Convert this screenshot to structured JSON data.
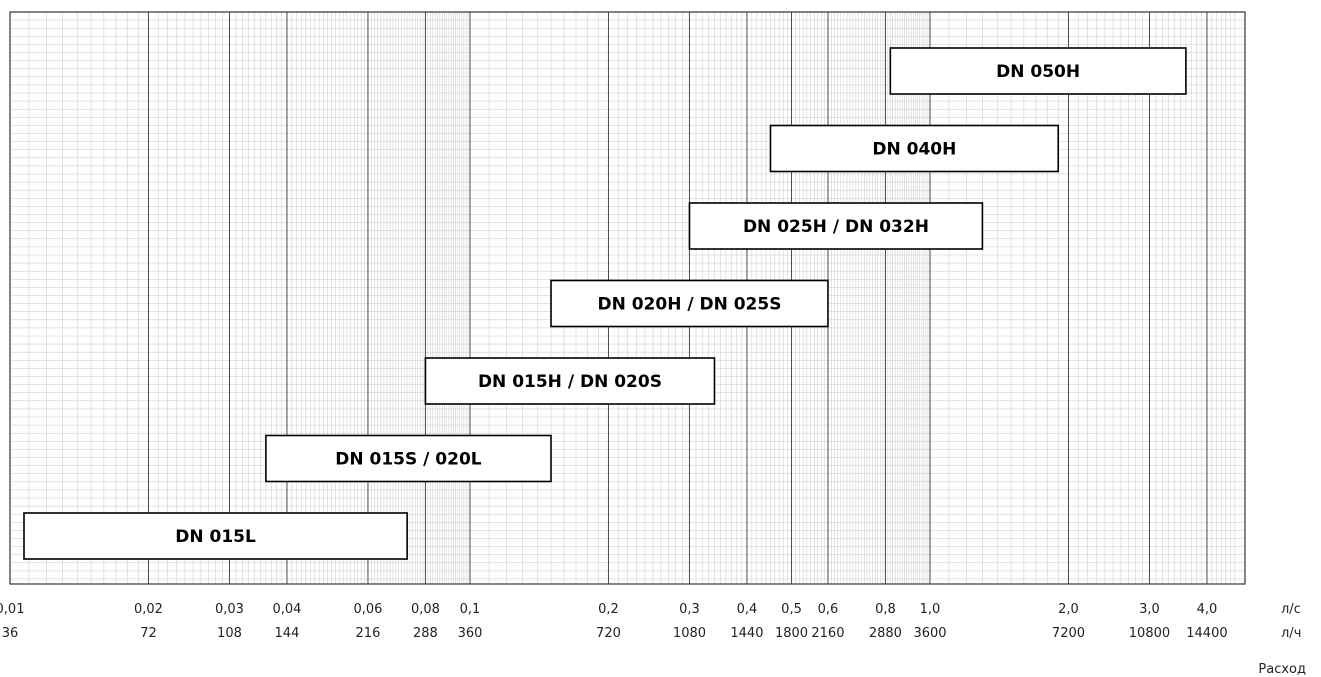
{
  "chart_data": {
    "type": "bar",
    "orientation": "horizontal-range",
    "x_scale": "log",
    "xlim": [
      0.01,
      4.6
    ],
    "grid": true,
    "ranges": [
      {
        "label": "DN 050H",
        "from": 0.82,
        "to": 3.6
      },
      {
        "label": "DN 040H",
        "from": 0.45,
        "to": 1.9
      },
      {
        "label": "DN 025H / DN 032H",
        "from": 0.3,
        "to": 1.3
      },
      {
        "label": "DN 020H / DN 025S",
        "from": 0.15,
        "to": 0.6
      },
      {
        "label": "DN 015H / DN 020S",
        "from": 0.08,
        "to": 0.34
      },
      {
        "label": "DN 015S / 020L",
        "from": 0.036,
        "to": 0.15
      },
      {
        "label": "DN 015L",
        "from": 0.0101,
        "to": 0.073
      }
    ],
    "ticks": [
      {
        "value": 0.01,
        "ls": "0,01",
        "lh": "36"
      },
      {
        "value": 0.02,
        "ls": "0,02",
        "lh": "72"
      },
      {
        "value": 0.03,
        "ls": "0,03",
        "lh": "108"
      },
      {
        "value": 0.04,
        "ls": "0,04",
        "lh": "144"
      },
      {
        "value": 0.06,
        "ls": "0,06",
        "lh": "216"
      },
      {
        "value": 0.08,
        "ls": "0,08",
        "lh": "288"
      },
      {
        "value": 0.1,
        "ls": "0,1",
        "lh": "360"
      },
      {
        "value": 0.2,
        "ls": "0,2",
        "lh": "720"
      },
      {
        "value": 0.3,
        "ls": "0,3",
        "lh": "1080"
      },
      {
        "value": 0.4,
        "ls": "0,4",
        "lh": "1440"
      },
      {
        "value": 0.5,
        "ls": "0,5",
        "lh": "1800"
      },
      {
        "value": 0.6,
        "ls": "0,6",
        "lh": "2160"
      },
      {
        "value": 0.8,
        "ls": "0,8",
        "lh": "2880"
      },
      {
        "value": 1.0,
        "ls": "1,0",
        "lh": "3600"
      },
      {
        "value": 2.0,
        "ls": "2,0",
        "lh": "7200"
      },
      {
        "value": 3.0,
        "ls": "3,0",
        "lh": "10800"
      },
      {
        "value": 4.0,
        "ls": "4,0",
        "lh": "14400"
      }
    ],
    "unit_ls": "л/с",
    "unit_lh": "л/ч",
    "xlabel": "Расход"
  },
  "colors": {
    "minor_grid": "#c8c8c8",
    "major_grid": "#4a4a4a",
    "frame": "#333333",
    "bar_fill": "#ffffff",
    "bar_stroke": "#000000"
  }
}
